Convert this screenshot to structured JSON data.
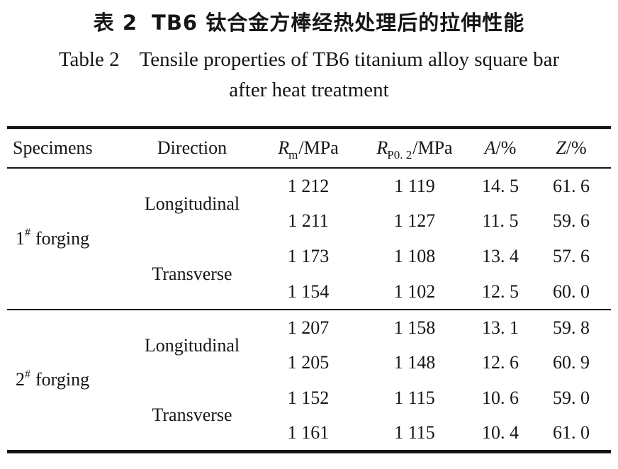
{
  "title": {
    "zh_label": "表 2",
    "zh_text": "TB6 钛合金方棒经热处理后的拉伸性能",
    "en_label": "Table 2",
    "en_line1": "Tensile properties of TB6 titanium alloy square bar",
    "en_line2": "after heat treatment"
  },
  "table": {
    "headers": {
      "specimens": "Specimens",
      "direction": "Direction",
      "rm": {
        "sym": "R",
        "sub": "m",
        "unit": "/MPa"
      },
      "rp": {
        "sym": "R",
        "sub": "P0. 2",
        "unit": "/MPa"
      },
      "a": {
        "sym": "A",
        "unit": "/%"
      },
      "z": {
        "sym": "Z",
        "unit": "/%"
      }
    },
    "groups": [
      {
        "specimen": {
          "num": "1",
          "sup": "#",
          "word": "forging"
        },
        "directions": [
          {
            "label": "Longitudinal",
            "rows": [
              {
                "rm": "1 212",
                "rp": "1 119",
                "a": "14. 5",
                "z": "61. 6"
              },
              {
                "rm": "1 211",
                "rp": "1 127",
                "a": "11. 5",
                "z": "59. 6"
              }
            ]
          },
          {
            "label": "Transverse",
            "rows": [
              {
                "rm": "1 173",
                "rp": "1 108",
                "a": "13. 4",
                "z": "57. 6"
              },
              {
                "rm": "1 154",
                "rp": "1 102",
                "a": "12. 5",
                "z": "60. 0"
              }
            ]
          }
        ]
      },
      {
        "specimen": {
          "num": "2",
          "sup": "#",
          "word": "forging"
        },
        "directions": [
          {
            "label": "Longitudinal",
            "rows": [
              {
                "rm": "1 207",
                "rp": "1 158",
                "a": "13. 1",
                "z": "59. 8"
              },
              {
                "rm": "1 205",
                "rp": "1 148",
                "a": "12. 6",
                "z": "60. 9"
              }
            ]
          },
          {
            "label": "Transverse",
            "rows": [
              {
                "rm": "1 152",
                "rp": "1 115",
                "a": "10. 6",
                "z": "59. 0"
              },
              {
                "rm": "1 161",
                "rp": "1 115",
                "a": "10. 4",
                "z": "61. 0"
              }
            ]
          }
        ]
      }
    ]
  },
  "chart_data": {
    "type": "table",
    "title": "Table 2  Tensile properties of TB6 titanium alloy square bar after heat treatment",
    "columns": [
      "Specimens",
      "Direction",
      "Rm/MPa",
      "RP0.2/MPa",
      "A/%",
      "Z/%"
    ],
    "rows": [
      [
        "1# forging",
        "Longitudinal",
        1212,
        1119,
        14.5,
        61.6
      ],
      [
        "1# forging",
        "Longitudinal",
        1211,
        1127,
        11.5,
        59.6
      ],
      [
        "1# forging",
        "Transverse",
        1173,
        1108,
        13.4,
        57.6
      ],
      [
        "1# forging",
        "Transverse",
        1154,
        1102,
        12.5,
        60.0
      ],
      [
        "2# forging",
        "Longitudinal",
        1207,
        1158,
        13.1,
        59.8
      ],
      [
        "2# forging",
        "Longitudinal",
        1205,
        1148,
        12.6,
        60.9
      ],
      [
        "2# forging",
        "Transverse",
        1152,
        1115,
        10.6,
        59.0
      ],
      [
        "2# forging",
        "Transverse",
        1161,
        1115,
        10.4,
        61.0
      ]
    ]
  }
}
